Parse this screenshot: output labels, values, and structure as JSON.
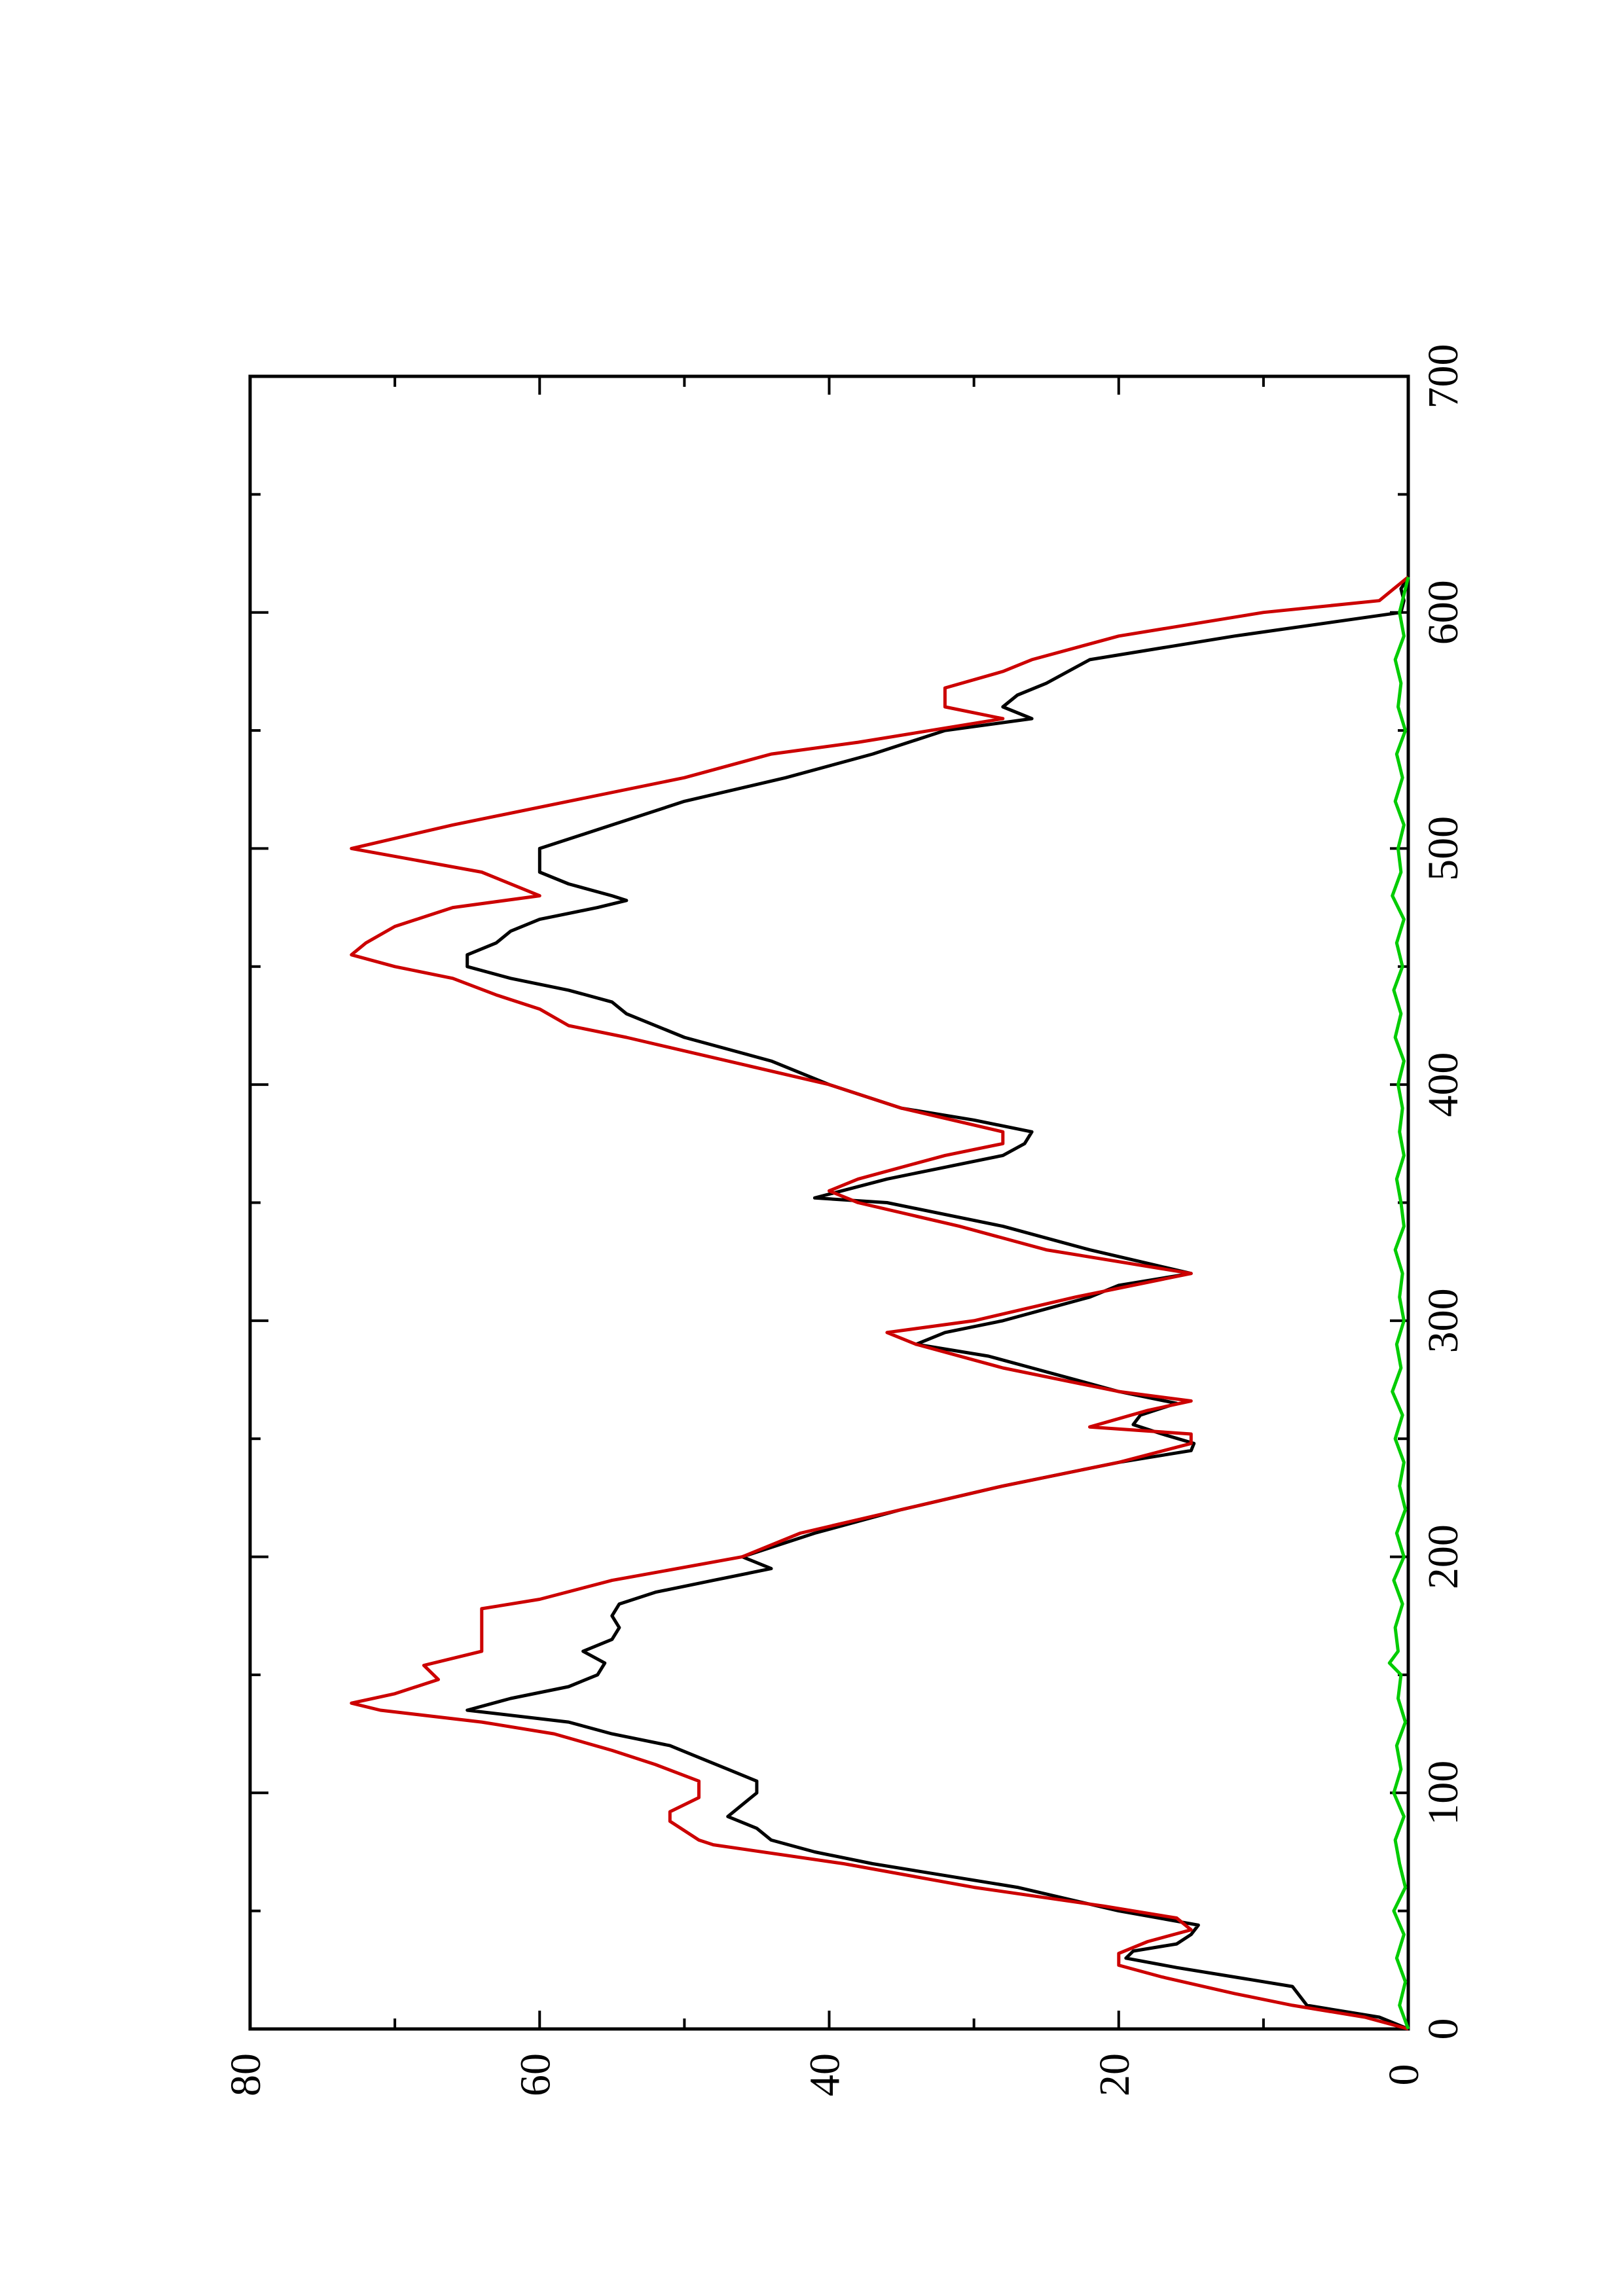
{
  "chart_data": {
    "type": "line",
    "title": "",
    "xlabel": "",
    "ylabel": "",
    "orientation": "rotated-90-ccw",
    "xlim": [
      0,
      700
    ],
    "ylim": [
      0,
      80
    ],
    "x_ticks": [
      "0",
      "100",
      "200",
      "300",
      "400",
      "500",
      "600",
      "700"
    ],
    "y_ticks": [
      "0",
      "20",
      "40",
      "60",
      "80"
    ],
    "grid": false,
    "legend": "none",
    "series": [
      {
        "color": "#000000",
        "x": [
          0,
          5,
          10,
          18,
          22,
          26,
          30,
          33,
          36,
          40,
          44,
          50,
          60,
          70,
          75,
          80,
          85,
          90,
          95,
          100,
          105,
          110,
          115,
          120,
          125,
          130,
          135,
          140,
          145,
          150,
          155,
          160,
          165,
          170,
          175,
          180,
          185,
          190,
          195,
          200,
          210,
          220,
          230,
          240,
          245,
          248,
          252,
          256,
          260,
          265,
          270,
          280,
          285,
          290,
          295,
          300,
          305,
          310,
          315,
          320,
          330,
          340,
          350,
          352,
          360,
          365,
          370,
          375,
          380,
          385,
          390,
          400,
          410,
          420,
          430,
          435,
          440,
          445,
          450,
          455,
          460,
          465,
          470,
          475,
          478,
          480,
          485,
          490,
          495,
          500,
          510,
          520,
          530,
          540,
          550,
          555,
          560,
          565,
          570,
          580,
          590,
          600,
          605,
          610,
          615
        ],
        "y": [
          0,
          2,
          7,
          8,
          12,
          16,
          19.5,
          19,
          16,
          15,
          14.5,
          20,
          27,
          37,
          41,
          44,
          45,
          47,
          46,
          45,
          45,
          47,
          49,
          51,
          55,
          58,
          65,
          62,
          58,
          56,
          55.5,
          57,
          55,
          54.5,
          55,
          54.5,
          52,
          48,
          44,
          46,
          41,
          35,
          28,
          20,
          15,
          14.8,
          17,
          19,
          18.5,
          16,
          20,
          26,
          29,
          34,
          32,
          28,
          25,
          22,
          20,
          15,
          22,
          28,
          36,
          41,
          36,
          32,
          28,
          26.5,
          26,
          30,
          35,
          40,
          44,
          50,
          54,
          55,
          58,
          62,
          65,
          65,
          63,
          62,
          60,
          56,
          54,
          55,
          58,
          60,
          60,
          60,
          55,
          50,
          43,
          37,
          32,
          26,
          28,
          27,
          25,
          22,
          12,
          0.5,
          0.3,
          0.5,
          0
        ]
      },
      {
        "color": "#cc0000",
        "x": [
          0,
          5,
          10,
          15,
          22,
          27,
          32,
          37,
          42,
          47,
          52,
          60,
          70,
          78,
          80,
          88,
          92,
          98,
          105,
          112,
          118,
          125,
          130,
          135,
          138,
          142,
          148,
          154,
          160,
          170,
          178,
          182,
          190,
          200,
          210,
          220,
          230,
          240,
          248,
          252,
          255,
          262,
          266,
          270,
          280,
          290,
          295,
          300,
          310,
          320,
          322,
          330,
          340,
          350,
          355,
          360,
          370,
          375,
          380,
          390,
          400,
          410,
          420,
          425,
          432,
          438,
          445,
          450,
          455,
          460,
          467,
          475,
          480,
          490,
          500,
          510,
          520,
          530,
          540,
          545,
          555,
          560,
          568,
          575,
          580,
          590,
          600,
          605,
          610,
          615
        ],
        "y": [
          0,
          3,
          8,
          12,
          17,
          20,
          20,
          18,
          15,
          16,
          21,
          30,
          39,
          48,
          49,
          51,
          51,
          49,
          49,
          52,
          55,
          59,
          64,
          71,
          73,
          70,
          67,
          68,
          64,
          64,
          64,
          60,
          55,
          46,
          42,
          35,
          28,
          20,
          15,
          15,
          22,
          18,
          15,
          20,
          28,
          34,
          36,
          30,
          23,
          15,
          17,
          25,
          31,
          38,
          40,
          38,
          32,
          28,
          28,
          35,
          40,
          47,
          54,
          58,
          60,
          63,
          66,
          70,
          73,
          72,
          70,
          66,
          60,
          64,
          73,
          66,
          58,
          50,
          44,
          38,
          28,
          32,
          32,
          28,
          26,
          20,
          10,
          2,
          1,
          0
        ]
      },
      {
        "color": "#00cc00",
        "x": [
          0,
          10,
          20,
          30,
          40,
          50,
          60,
          70,
          80,
          90,
          100,
          110,
          120,
          130,
          140,
          150,
          155,
          160,
          170,
          180,
          190,
          200,
          210,
          220,
          230,
          240,
          250,
          260,
          270,
          280,
          290,
          300,
          310,
          320,
          330,
          340,
          350,
          360,
          370,
          380,
          390,
          400,
          410,
          420,
          430,
          440,
          450,
          460,
          470,
          480,
          490,
          500,
          510,
          520,
          530,
          540,
          550,
          560,
          570,
          580,
          590,
          600,
          610,
          615
        ],
        "y": [
          0,
          0.6,
          0.2,
          0.8,
          0.3,
          1.0,
          0.2,
          0.6,
          0.9,
          0.3,
          1.0,
          0.5,
          0.8,
          0.2,
          0.7,
          0.5,
          1.3,
          0.7,
          0.9,
          0.4,
          1.0,
          0.3,
          0.8,
          0.2,
          0.6,
          0.3,
          0.9,
          0.4,
          1.1,
          0.5,
          0.8,
          0.3,
          0.6,
          0.4,
          0.9,
          0.3,
          0.5,
          0.8,
          0.3,
          0.6,
          0.4,
          0.7,
          0.3,
          0.9,
          0.5,
          1.0,
          0.4,
          0.8,
          0.3,
          1.1,
          0.5,
          0.7,
          0.3,
          0.9,
          0.4,
          0.8,
          0.2,
          0.7,
          0.5,
          0.9,
          0.3,
          0.6,
          0.2,
          0
        ]
      }
    ]
  }
}
